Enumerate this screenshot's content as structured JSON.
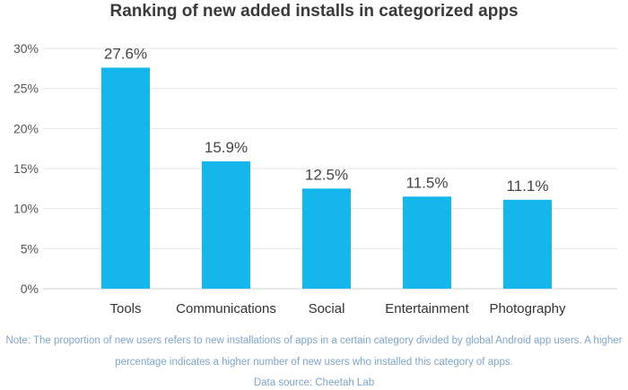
{
  "chart_data": {
    "type": "bar",
    "title": "Ranking of new added installs in categorized apps",
    "categories": [
      "Tools",
      "Communications",
      "Social",
      "Entertainment",
      "Photography"
    ],
    "values": [
      27.6,
      15.9,
      12.5,
      11.5,
      11.1
    ],
    "data_labels": [
      "27.6%",
      "15.9%",
      "12.5%",
      "11.5%",
      "11.1%"
    ],
    "ylim": [
      0,
      30
    ],
    "yticks": [
      0,
      5,
      10,
      15,
      20,
      25,
      30
    ],
    "ytick_labels": [
      "0%",
      "5%",
      "10%",
      "15%",
      "20%",
      "25%",
      "30%"
    ],
    "grid": true,
    "bar_color": "#14b6ec",
    "xlabel": "",
    "ylabel": ""
  },
  "notes": {
    "line1": "Note: The proportion of new users refers to new installations of apps in a certain category divided by global Android app users. A higher",
    "line2": "percentage indicates a higher number of new users who installed this category of apps.",
    "line3": "Data source: Cheetah Lab"
  }
}
